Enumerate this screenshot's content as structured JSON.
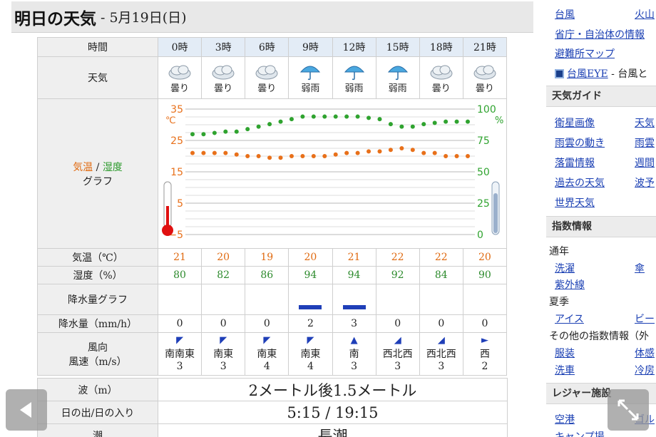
{
  "title": {
    "main": "明日の天気",
    "sub": "- 5月19日(日)"
  },
  "table": {
    "time_label": "時間",
    "times": [
      "0時",
      "3時",
      "6時",
      "9時",
      "12時",
      "15時",
      "18時",
      "21時"
    ],
    "weather_label": "天気",
    "weather": [
      "曇り",
      "曇り",
      "曇り",
      "弱雨",
      "弱雨",
      "弱雨",
      "曇り",
      "曇り"
    ],
    "weather_icons": [
      "cloud-icon",
      "cloud-icon",
      "cloud-icon",
      "umbrella-icon",
      "umbrella-icon",
      "umbrella-icon",
      "cloud-icon",
      "cloud-icon"
    ],
    "graph_label_temp": "気温",
    "graph_label_sep": " / ",
    "graph_label_hum": "湿度",
    "graph_label_graph": "グラフ",
    "temp_label": "気温（℃）",
    "temps": [
      "21",
      "20",
      "19",
      "20",
      "21",
      "22",
      "22",
      "20"
    ],
    "humidity_label": "湿度（%）",
    "humidity": [
      "80",
      "82",
      "86",
      "94",
      "94",
      "92",
      "84",
      "90"
    ],
    "precip_graph_label": "降水量グラフ",
    "precip_label": "降水量（mm/h）",
    "precip": [
      "0",
      "0",
      "0",
      "2",
      "3",
      "0",
      "0",
      "0"
    ],
    "wind_label_1": "風向",
    "wind_label_2": "風速（m/s）",
    "wind_dir": [
      "南南東",
      "南東",
      "南東",
      "南東",
      "南",
      "西北西",
      "西北西",
      "西"
    ],
    "wind_speed": [
      "3",
      "3",
      "4",
      "4",
      "3",
      "3",
      "3",
      "2"
    ],
    "wind_arrows": [
      "◤",
      "◤",
      "◤",
      "◤",
      "▲",
      "◢",
      "◢",
      "►"
    ]
  },
  "chart_data": {
    "type": "line",
    "y_left_ticks": [
      "35",
      "25",
      "15",
      "5",
      "−5"
    ],
    "y_left_unit": "℃",
    "y_right_ticks": [
      "100",
      "75",
      "50",
      "25",
      "0"
    ],
    "y_right_unit": "%",
    "ylim_temp": [
      -5,
      35
    ],
    "ylim_hum": [
      0,
      100
    ],
    "series": [
      {
        "name": "気温",
        "color": "#e8701a",
        "values": [
          21,
          21,
          21,
          21,
          20.5,
          20,
          20,
          19.5,
          19.5,
          20,
          20,
          20,
          20,
          20.5,
          21,
          21,
          21.5,
          21.5,
          22,
          22.5,
          22,
          21,
          21,
          20,
          20,
          20
        ]
      },
      {
        "name": "湿度",
        "color": "#2fa32f",
        "values": [
          80,
          80,
          81,
          82,
          82,
          84,
          86,
          88,
          90,
          92,
          94,
          94,
          94,
          94,
          94,
          94,
          93,
          92,
          88,
          86,
          86,
          88,
          89,
          90,
          90,
          90
        ]
      }
    ]
  },
  "info": {
    "wave_label": "波（m）",
    "wave": "2メートル後1.5メートル",
    "sun_label": "日の出/日の入り",
    "sun": "5:15 / 19:15",
    "tide_label": "潮",
    "tide": "長潮"
  },
  "sidebar": {
    "typhoon": "台風",
    "volcano": "火山",
    "gov": "省庁・自治体の情報",
    "shelter": "避難所マップ",
    "typhoon_eye": "台風EYE",
    "typhoon_eye_suffix": " - 台風と",
    "guide_header": "天気ガイド",
    "guide_links": [
      [
        "衛星画像",
        "天気"
      ],
      [
        "雨雲の動き",
        "雨雲"
      ],
      [
        "落雷情報",
        "週間"
      ],
      [
        "過去の天気",
        "波予"
      ]
    ],
    "world": "世界天気",
    "index_header": "指数情報",
    "year_round": "通年",
    "laundry": "洗濯",
    "umbrella": "傘",
    "uv": "紫外線",
    "summer": "夏季",
    "ice": "アイス",
    "beer": "ビー",
    "other_index": "その他の指数情報（外",
    "clothes": "服装",
    "body_feel": "体感",
    "car_wash": "洗車",
    "cooling": "冷房",
    "leisure_header": "レジャー施設",
    "airport": "空港",
    "golf": "ゴル",
    "camp": "キャンプ場"
  }
}
